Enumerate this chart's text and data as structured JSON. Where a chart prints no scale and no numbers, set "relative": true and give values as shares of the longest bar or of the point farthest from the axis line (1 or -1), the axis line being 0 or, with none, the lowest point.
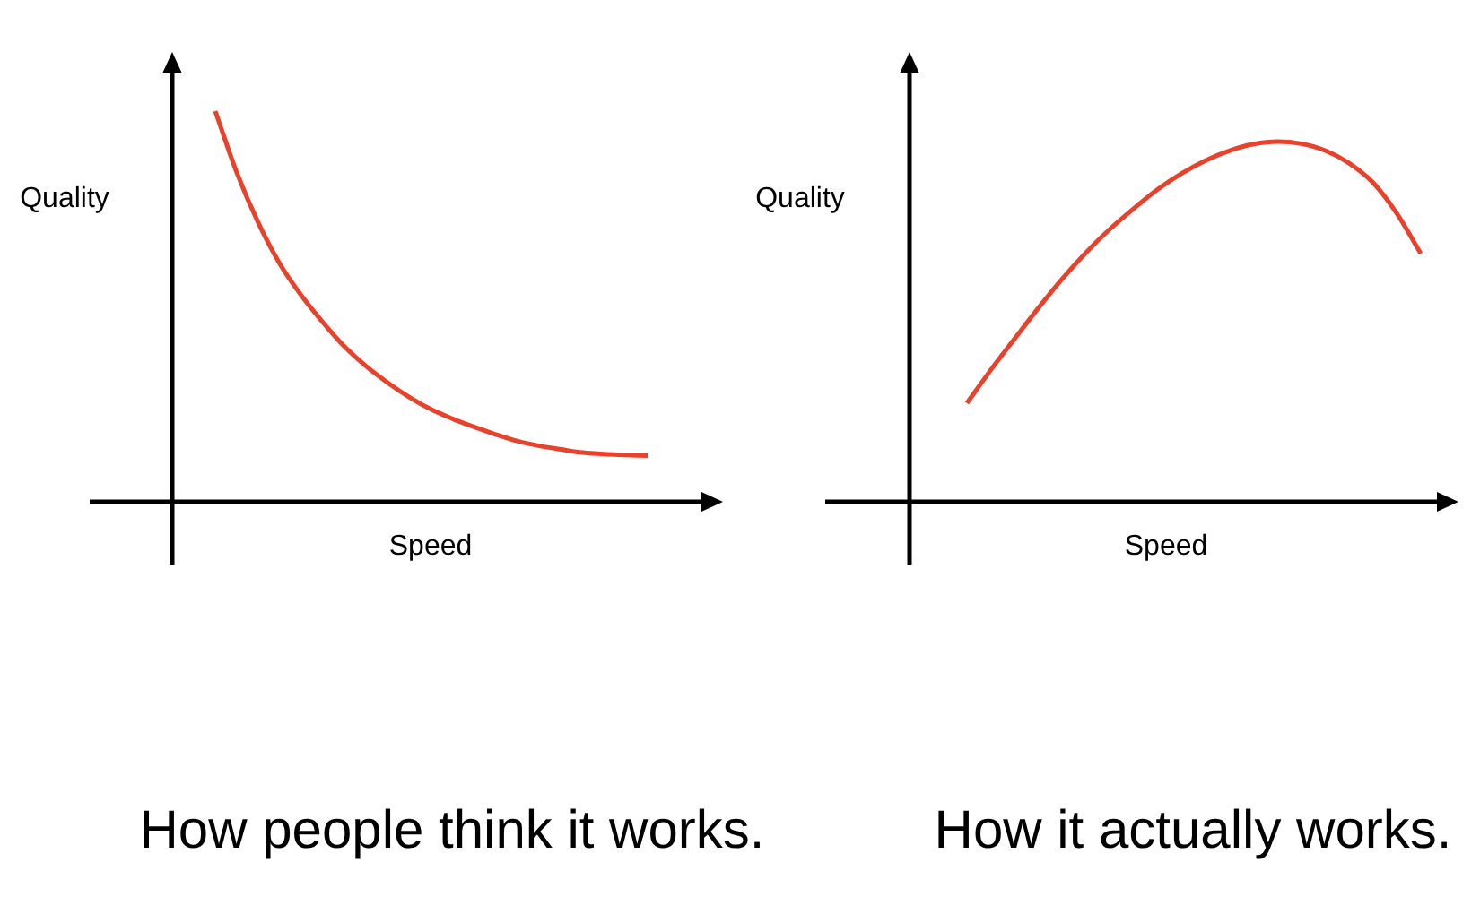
{
  "chart_data": [
    {
      "type": "line",
      "title": "How people think it works.",
      "xlabel": "Speed",
      "ylabel": "Quality",
      "relative": true,
      "categories": [
        null,
        null,
        null,
        null,
        null,
        null,
        null,
        null,
        null,
        null,
        null,
        null,
        null,
        null,
        null,
        null,
        null,
        null,
        null,
        null,
        null
      ],
      "series": [
        {
          "color": "#e8412c",
          "values": [
            1,
            0.842,
            0.713,
            0.608,
            0.527,
            0.458,
            0.396,
            0.346,
            0.304,
            0.267,
            0.236,
            0.212,
            0.191,
            0.172,
            0.155,
            0.143,
            0.134,
            0.126,
            0.122,
            0.12,
            0.118
          ]
        }
      ]
    },
    {
      "type": "line",
      "title": "How it actually works.",
      "xlabel": "Speed",
      "ylabel": "Quality",
      "relative": true,
      "categories": [
        null,
        null,
        null,
        null,
        null,
        null,
        null,
        null,
        null,
        null,
        null,
        null,
        null,
        null,
        null,
        null,
        null,
        null,
        null,
        null
      ],
      "series": [
        {
          "color": "#e8412c",
          "values": [
            0.274,
            0.366,
            0.453,
            0.539,
            0.62,
            0.693,
            0.758,
            0.815,
            0.868,
            0.912,
            0.948,
            0.975,
            0.993,
            1,
            0.994,
            0.975,
            0.94,
            0.886,
            0.8,
            0.689
          ]
        }
      ]
    }
  ]
}
